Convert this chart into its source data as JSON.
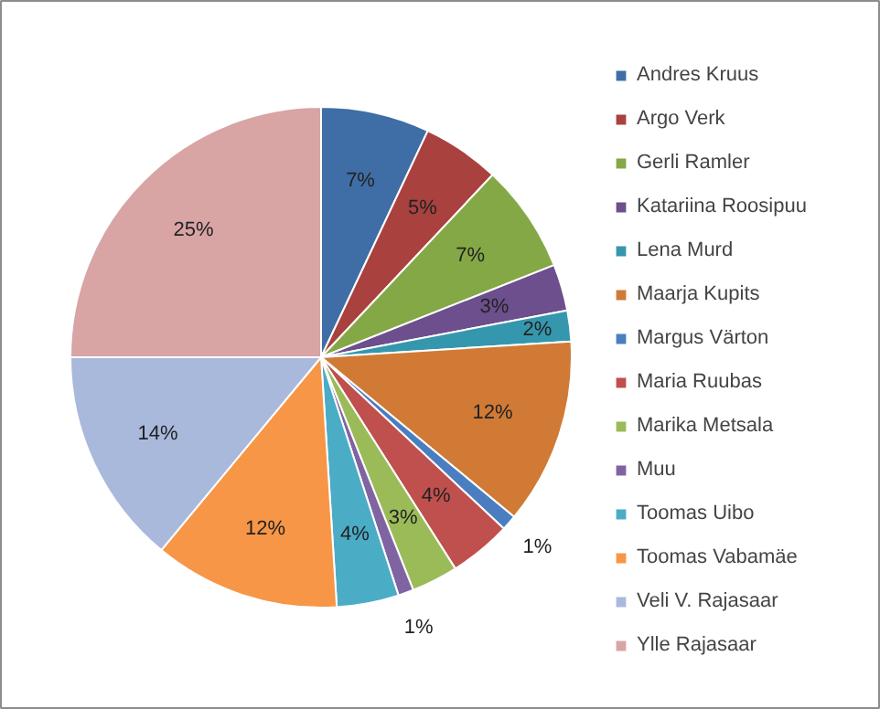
{
  "chart_data": {
    "type": "pie",
    "legend": "right",
    "categories": [
      "Andres Kruus",
      "Argo Verk",
      "Gerli Ramler",
      "Katariina Roosipuu",
      "Lena Murd",
      "Maarja Kupits",
      "Margus Värton",
      "Maria Ruubas",
      "Marika Metsala",
      "Muu",
      "Toomas Uibo",
      "Toomas Vabamäe",
      "Veli V. Rajasaar",
      "Ylle Rajasaar"
    ],
    "values": [
      7,
      5,
      7,
      3,
      2,
      12,
      1,
      4,
      3,
      1,
      4,
      12,
      14,
      25
    ],
    "value_labels": [
      "7%",
      "5%",
      "7%",
      "3%",
      "2%",
      "12%",
      "1%",
      "4%",
      "3%",
      "1%",
      "4%",
      "12%",
      "14%",
      "25%"
    ],
    "colors": [
      "#3f6ea6",
      "#a9413e",
      "#85a846",
      "#6c4f8c",
      "#3597ae",
      "#d07a35",
      "#4a7ec0",
      "#c0504d",
      "#9bbb59",
      "#8064a2",
      "#4bacc6",
      "#f79646",
      "#a9b9dc",
      "#d8a4a4"
    ]
  }
}
